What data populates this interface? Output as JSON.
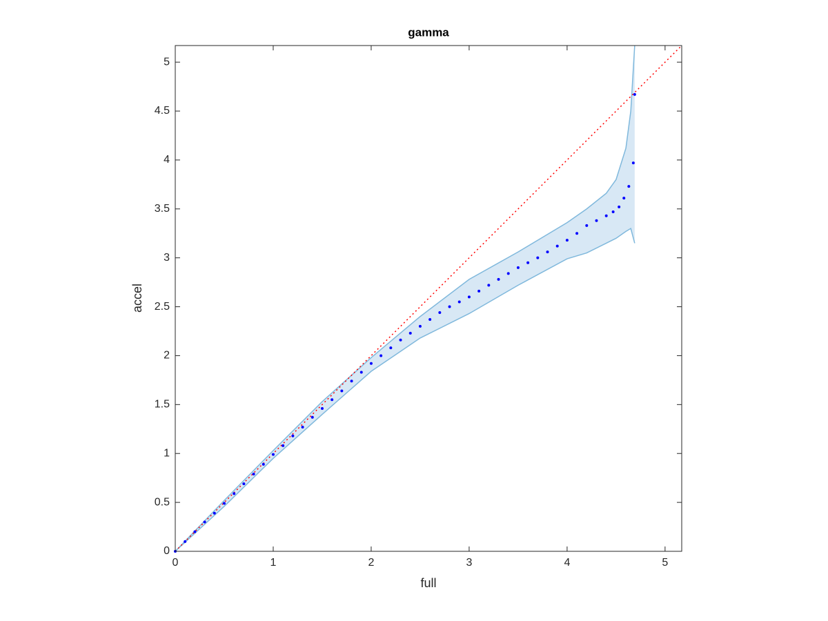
{
  "chart_data": {
    "type": "scatter",
    "title": "gamma",
    "x_label": "full",
    "y_label": "accel",
    "x": [
      0,
      0.1,
      0.2,
      0.3,
      0.4,
      0.5,
      0.6,
      0.7,
      0.8,
      0.9,
      1.0,
      1.1,
      1.2,
      1.3,
      1.4,
      1.5,
      1.6,
      1.7,
      1.8,
      1.9,
      2.0,
      2.1,
      2.2,
      2.3,
      2.4,
      2.5,
      2.6,
      2.7,
      2.8,
      2.9,
      3.0,
      3.1,
      3.2,
      3.3,
      3.4,
      3.5,
      3.6,
      3.7,
      3.8,
      3.9,
      4.0,
      4.1,
      4.2,
      4.3,
      4.4,
      4.47,
      4.53,
      4.58,
      4.63,
      4.676,
      4.69
    ],
    "values": [
      0,
      0.1,
      0.2,
      0.3,
      0.39,
      0.49,
      0.59,
      0.69,
      0.79,
      0.89,
      0.99,
      1.08,
      1.18,
      1.27,
      1.37,
      1.46,
      1.55,
      1.64,
      1.74,
      1.83,
      1.92,
      2.0,
      2.08,
      2.16,
      2.23,
      2.3,
      2.37,
      2.44,
      2.5,
      2.55,
      2.6,
      2.66,
      2.72,
      2.78,
      2.84,
      2.9,
      2.95,
      3.0,
      3.06,
      3.12,
      3.18,
      3.25,
      3.33,
      3.38,
      3.43,
      3.47,
      3.52,
      3.61,
      3.73,
      3.97,
      4.67
    ],
    "color": "#0000ff",
    "band": {
      "x": [
        0,
        0.5,
        1,
        1.5,
        2,
        2.5,
        3,
        3.5,
        4,
        4.2,
        4.4,
        4.5,
        4.6,
        4.65,
        4.69
      ],
      "upper": [
        0,
        0.52,
        1.03,
        1.53,
        1.98,
        2.4,
        2.78,
        3.06,
        3.36,
        3.5,
        3.66,
        3.8,
        4.12,
        4.5,
        5.17
      ],
      "lower": [
        0,
        0.46,
        0.95,
        1.4,
        1.84,
        2.18,
        2.43,
        2.72,
        2.99,
        3.05,
        3.15,
        3.2,
        3.27,
        3.3,
        3.15
      ],
      "fill": "#d8e8f5",
      "color": "#7fb8dc"
    },
    "diagonal": true,
    "diagonal_color": "#ff0000",
    "xlim": [
      0,
      5.17
    ],
    "ylim": [
      0,
      5.17
    ],
    "xticks": [
      0,
      1,
      2,
      3,
      4,
      5
    ],
    "yticks": [
      0,
      0.5,
      1,
      1.5,
      2,
      2.5,
      3,
      3.5,
      4,
      4.5,
      5
    ]
  }
}
